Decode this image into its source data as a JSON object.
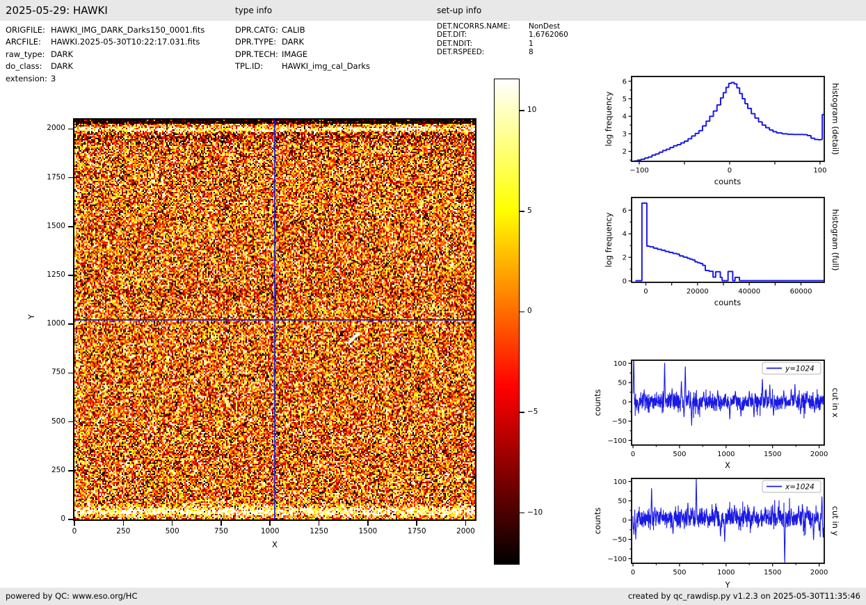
{
  "header": {
    "title": "2025-05-29: HAWKI",
    "type_info_heading": "type info",
    "setup_info_heading": "set-up info"
  },
  "file_info": {
    "rows": [
      {
        "label": "ORIGFILE:",
        "value": "HAWKI_IMG_DARK_Darks150_0001.fits"
      },
      {
        "label": "ARCFILE:",
        "value": "HAWKI.2025-05-30T10:22:17.031.fits"
      },
      {
        "label": "raw_type:",
        "value": "DARK"
      },
      {
        "label": "do_class:",
        "value": "DARK"
      },
      {
        "label": "extension:",
        "value": "3"
      }
    ]
  },
  "type_info": {
    "rows": [
      {
        "label": "DPR.CATG:",
        "value": "CALIB"
      },
      {
        "label": "DPR.TYPE:",
        "value": "DARK"
      },
      {
        "label": "DPR.TECH:",
        "value": "IMAGE"
      },
      {
        "label": "TPL.ID:",
        "value": "HAWKI_img_cal_Darks"
      }
    ]
  },
  "setup_info": {
    "rows": [
      {
        "label": "DET.NCORRS.NAME:",
        "value": "NonDest"
      },
      {
        "label": "DET.DIT:",
        "value": "1.6762060"
      },
      {
        "label": "DET.NDIT:",
        "value": "1"
      },
      {
        "label": "DET.RSPEED:",
        "value": "8"
      }
    ]
  },
  "footer": {
    "left": "powered by QC: www.eso.org/HC",
    "right": "created by qc_rawdisp.py v1.2.3 on 2025-05-30T11:35:46"
  },
  "colors": {
    "line_blue": "#1a1ae6",
    "crosshair_blue": "#2222cc",
    "header_bg": "#e8e8e8",
    "colormap": "hot"
  },
  "chart_data": [
    {
      "id": "detector_image",
      "type": "heatmap",
      "xlabel": "X",
      "ylabel": "Y",
      "x_range": [
        0,
        2048
      ],
      "y_range": [
        0,
        2048
      ],
      "x_ticks": [
        0,
        250,
        500,
        750,
        1000,
        1250,
        1500,
        1750,
        2000
      ],
      "y_ticks": [
        0,
        250,
        500,
        750,
        1000,
        1250,
        1500,
        1750,
        2000
      ],
      "crosshair": {
        "x": 1024,
        "y": 1024
      },
      "colorbar": {
        "vmin": -12.5,
        "vmax": 11.6,
        "ticks": [
          10,
          5,
          0,
          -5,
          -10
        ]
      },
      "features": [
        "random dark-frame noise around 0 counts",
        "bright band near bottom rows y=20-60",
        "bright band at top y=1990-2010 with black cap above y=2030",
        "dark smudge in top-left corner",
        "white diagonal streak near (1430, 925)"
      ]
    },
    {
      "id": "hist_detail",
      "type": "step",
      "xlabel": "counts",
      "ylabel": "log frequency",
      "right_label": "histogram (detail)",
      "xlim": [
        -108.5,
        104.7
      ],
      "ylim": [
        1.43,
        6.27
      ],
      "x_major_ticks": [
        -100,
        -50,
        0,
        50,
        100
      ],
      "x_labeled_ticks": [
        -100,
        0,
        100
      ],
      "x_minor_ticks": [],
      "y_major_ticks": [
        2,
        3,
        4,
        5,
        6
      ],
      "y_minor_ticks": [
        1.5,
        2.5,
        3.5,
        4.5,
        5.5
      ],
      "steps": [
        [
          -106,
          1.45
        ],
        [
          -102,
          1.5
        ],
        [
          -98,
          1.55
        ],
        [
          -94,
          1.62
        ],
        [
          -90,
          1.68
        ],
        [
          -86,
          1.78
        ],
        [
          -82,
          1.85
        ],
        [
          -78,
          1.95
        ],
        [
          -74,
          2.05
        ],
        [
          -70,
          2.12
        ],
        [
          -66,
          2.22
        ],
        [
          -62,
          2.32
        ],
        [
          -58,
          2.38
        ],
        [
          -54,
          2.48
        ],
        [
          -50,
          2.58
        ],
        [
          -46,
          2.72
        ],
        [
          -42,
          2.88
        ],
        [
          -38,
          3.02
        ],
        [
          -34,
          3.18
        ],
        [
          -30,
          3.45
        ],
        [
          -26,
          3.72
        ],
        [
          -22,
          4.0
        ],
        [
          -18,
          4.3
        ],
        [
          -14,
          4.65
        ],
        [
          -10,
          5.05
        ],
        [
          -7,
          5.35
        ],
        [
          -4,
          5.65
        ],
        [
          -1,
          5.88
        ],
        [
          2,
          5.93
        ],
        [
          5,
          5.85
        ],
        [
          8,
          5.62
        ],
        [
          11,
          5.3
        ],
        [
          14,
          5.0
        ],
        [
          17,
          4.72
        ],
        [
          20,
          4.45
        ],
        [
          24,
          4.15
        ],
        [
          28,
          3.9
        ],
        [
          32,
          3.68
        ],
        [
          36,
          3.5
        ],
        [
          40,
          3.35
        ],
        [
          44,
          3.22
        ],
        [
          48,
          3.12
        ],
        [
          52,
          3.05
        ],
        [
          58,
          3.0
        ],
        [
          64,
          2.97
        ],
        [
          70,
          2.96
        ],
        [
          76,
          2.96
        ],
        [
          82,
          2.95
        ],
        [
          86,
          2.9
        ],
        [
          90,
          2.75
        ],
        [
          94,
          2.68
        ],
        [
          98,
          2.66
        ],
        [
          101,
          2.68
        ],
        [
          102.5,
          4.1
        ],
        [
          104.7,
          4.1
        ]
      ]
    },
    {
      "id": "hist_full",
      "type": "step",
      "xlabel": "counts",
      "ylabel": "log frequency",
      "right_label": "histogram (full)",
      "xlim": [
        -5500,
        69000
      ],
      "ylim": [
        -0.12,
        7.08
      ],
      "x_major_ticks": [
        0,
        10000,
        20000,
        30000,
        40000,
        50000,
        60000
      ],
      "x_labeled_ticks": [
        0,
        20000,
        40000,
        60000
      ],
      "x_minor_ticks": [],
      "y_major_ticks": [
        0,
        2,
        4,
        6
      ],
      "y_minor_ticks": [
        1,
        3,
        5
      ],
      "steps": [
        [
          -4000,
          0.02
        ],
        [
          -1500,
          6.6
        ],
        [
          400,
          2.95
        ],
        [
          1500,
          2.9
        ],
        [
          3000,
          2.78
        ],
        [
          4500,
          2.68
        ],
        [
          6000,
          2.6
        ],
        [
          7500,
          2.5
        ],
        [
          9000,
          2.42
        ],
        [
          10500,
          2.33
        ],
        [
          12000,
          2.28
        ],
        [
          13000,
          2.12
        ],
        [
          14500,
          2.02
        ],
        [
          16000,
          1.92
        ],
        [
          17000,
          1.85
        ],
        [
          18000,
          1.78
        ],
        [
          19000,
          1.62
        ],
        [
          20000,
          1.55
        ],
        [
          21000,
          1.48
        ],
        [
          22000,
          1.32
        ],
        [
          23000,
          0.88
        ],
        [
          24500,
          0.82
        ],
        [
          26000,
          0.32
        ],
        [
          27000,
          0.78
        ],
        [
          28800,
          0.3
        ],
        [
          29500,
          0.02
        ],
        [
          31800,
          0.8
        ],
        [
          33600,
          0.02
        ],
        [
          34500,
          0.3
        ],
        [
          36200,
          0.02
        ],
        [
          69000,
          0.02
        ]
      ]
    },
    {
      "id": "cut_x",
      "type": "line",
      "xlabel": "X",
      "ylabel": "counts",
      "right_label": "cut in x",
      "legend": "y=1024",
      "xlim": [
        -15,
        2055
      ],
      "ylim": [
        -112,
        108
      ],
      "x_major_ticks": [
        0,
        500,
        1000,
        1500,
        2000
      ],
      "x_labeled_ticks": [
        0,
        500,
        1000,
        1500,
        2000
      ],
      "x_minor_ticks": [
        250,
        750,
        1250,
        1750
      ],
      "y_major_ticks": [
        -100,
        -50,
        0,
        50,
        100
      ],
      "y_minor_ticks": [
        -75,
        -25,
        25,
        75
      ],
      "noise_sigma": 10,
      "baseline": 0,
      "seed": 42,
      "spikes": [
        [
          8,
          130
        ],
        [
          60,
          -30
        ],
        [
          120,
          32
        ],
        [
          340,
          108
        ],
        [
          420,
          35
        ],
        [
          520,
          57
        ],
        [
          548,
          -42
        ],
        [
          562,
          98
        ],
        [
          600,
          30
        ],
        [
          630,
          -62
        ],
        [
          700,
          -35
        ],
        [
          760,
          28
        ],
        [
          910,
          32
        ],
        [
          1040,
          -48
        ],
        [
          1100,
          30
        ],
        [
          1160,
          -40
        ],
        [
          1250,
          30
        ],
        [
          1300,
          -42
        ],
        [
          1390,
          63
        ],
        [
          1430,
          35
        ],
        [
          1470,
          45
        ],
        [
          1510,
          -38
        ],
        [
          1620,
          30
        ],
        [
          1700,
          35
        ],
        [
          1740,
          46
        ],
        [
          1800,
          -32
        ],
        [
          1870,
          30
        ],
        [
          1950,
          -28
        ]
      ]
    },
    {
      "id": "cut_y",
      "type": "line",
      "xlabel": "Y",
      "ylabel": "counts",
      "right_label": "cut in y",
      "legend": "x=1024",
      "xlim": [
        -15,
        2055
      ],
      "ylim": [
        -112,
        108
      ],
      "x_major_ticks": [
        0,
        500,
        1000,
        1500,
        2000
      ],
      "x_labeled_ticks": [
        0,
        500,
        1000,
        1500,
        2000
      ],
      "x_minor_ticks": [
        250,
        750,
        1250,
        1750
      ],
      "y_major_ticks": [
        -100,
        -50,
        0,
        50,
        100
      ],
      "y_minor_ticks": [
        -75,
        -25,
        25,
        75
      ],
      "noise_sigma": 11,
      "baseline": 4,
      "seed": 7,
      "spikes": [
        [
          10,
          -40
        ],
        [
          30,
          -50
        ],
        [
          200,
          88
        ],
        [
          235,
          36
        ],
        [
          300,
          32
        ],
        [
          430,
          -38
        ],
        [
          520,
          30
        ],
        [
          590,
          48
        ],
        [
          640,
          35
        ],
        [
          680,
          115
        ],
        [
          790,
          32
        ],
        [
          890,
          46
        ],
        [
          940,
          -45
        ],
        [
          985,
          -60
        ],
        [
          1090,
          42
        ],
        [
          1200,
          35
        ],
        [
          1300,
          38
        ],
        [
          1420,
          36
        ],
        [
          1500,
          40
        ],
        [
          1560,
          35
        ],
        [
          1630,
          -118
        ],
        [
          1700,
          32
        ],
        [
          1780,
          40
        ],
        [
          1820,
          44
        ],
        [
          1870,
          38
        ],
        [
          1940,
          -55
        ],
        [
          2000,
          -30
        ],
        [
          2030,
          65
        ],
        [
          2043,
          -45
        ]
      ]
    }
  ]
}
